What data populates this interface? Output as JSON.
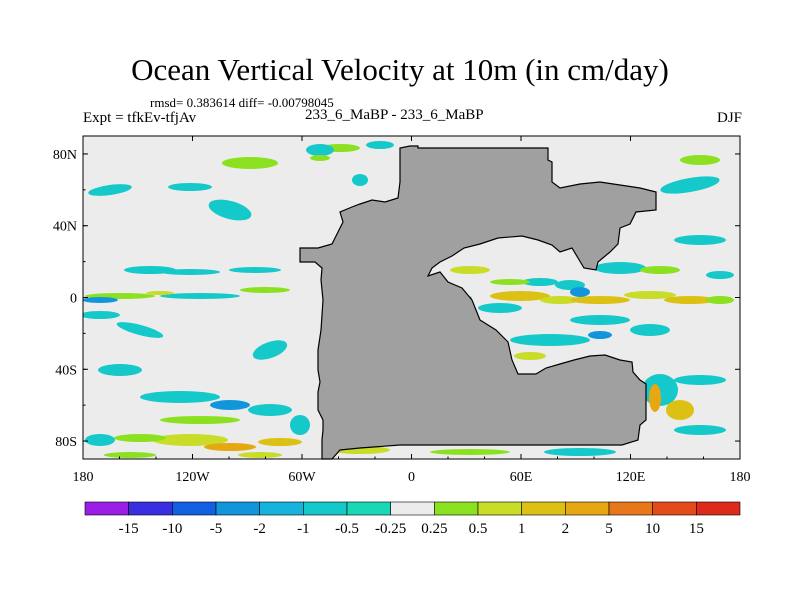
{
  "header": {
    "title": "Ocean Vertical Velocity at 10m (in cm/day)",
    "stats": "rmsd= 0.383614 diff= -0.00798045",
    "experiment": "Expt = tfkEv-tfjAv",
    "subtitle": "233_6_MaBP - 233_6_MaBP",
    "season": "DJF"
  },
  "chart_data": {
    "type": "heatmap",
    "title": "Ocean Vertical Velocity at 10m (in cm/day)",
    "x_ticks": [
      "180",
      "120W",
      "60W",
      "0",
      "60E",
      "120E",
      "180"
    ],
    "x_tick_values": [
      -180,
      -120,
      -60,
      0,
      60,
      120,
      180
    ],
    "y_ticks": [
      "80N",
      "40N",
      "0",
      "40S",
      "80S"
    ],
    "y_tick_values": [
      80,
      40,
      0,
      -40,
      -80
    ],
    "xlim": [
      -180,
      180
    ],
    "ylim": [
      -90,
      90
    ],
    "land_color": "#a0a0a0",
    "colorbar": {
      "labels": [
        "-15",
        "-10",
        "-5",
        "-2",
        "-1",
        "-0.5",
        "-0.25",
        "0.25",
        "0.5",
        "1",
        "2",
        "5",
        "10",
        "15"
      ],
      "colors": [
        "#9b1ee6",
        "#3a2fe0",
        "#1160e2",
        "#1196dc",
        "#16b4dc",
        "#15c8c9",
        "#1ad8b6",
        "#ececec",
        "#8be01f",
        "#c8dc28",
        "#dcc014",
        "#e6a812",
        "#e8761a",
        "#e44a1c",
        "#dc2a1c"
      ]
    }
  }
}
